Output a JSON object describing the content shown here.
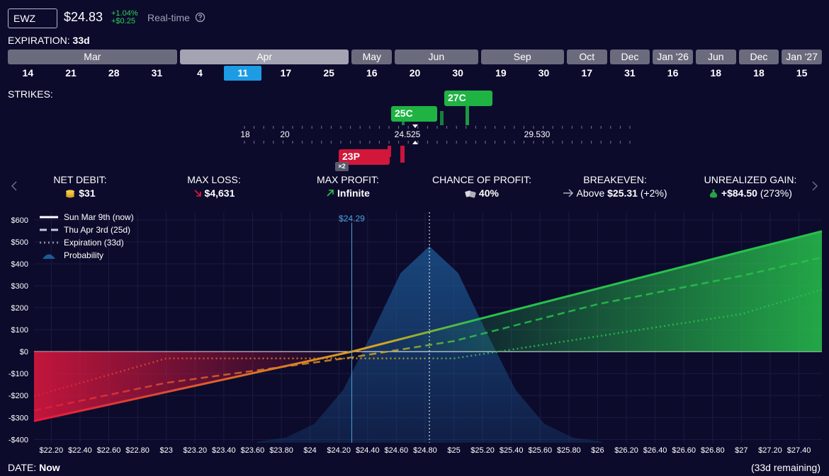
{
  "header": {
    "ticker": "EWZ",
    "price": "$24.83",
    "change_pct": "+1.04%",
    "change_abs": "+$0.25",
    "realtime": "Real-time"
  },
  "expiration": {
    "label": "EXPIRATION:",
    "value": "33d"
  },
  "months": [
    {
      "label": "Mar",
      "dates": [
        "14",
        "21",
        "28",
        "31"
      ]
    },
    {
      "label": "Apr",
      "dates": [
        "4",
        "11",
        "17",
        "25"
      ]
    },
    {
      "label": "May",
      "dates": [
        "16"
      ]
    },
    {
      "label": "Jun",
      "dates": [
        "20",
        "30"
      ]
    },
    {
      "label": "Sep",
      "dates": [
        "19",
        "30"
      ]
    },
    {
      "label": "Oct",
      "dates": [
        "17"
      ]
    },
    {
      "label": "Dec",
      "dates": [
        "31"
      ]
    },
    {
      "label": "Jan '26",
      "dates": [
        "16"
      ]
    },
    {
      "label": "Jun",
      "dates": [
        "18"
      ]
    },
    {
      "label": "Dec",
      "dates": [
        "18"
      ]
    },
    {
      "label": "Jan '27",
      "dates": [
        "15"
      ]
    }
  ],
  "selected": {
    "month": 1,
    "date": 1
  },
  "strikes": {
    "label": "STRIKES:",
    "ticks": [
      "18",
      "20",
      "24.525",
      "29.530"
    ],
    "legs": [
      {
        "label": "25C",
        "side": "call"
      },
      {
        "label": "27C",
        "side": "call"
      },
      {
        "label": "23P",
        "side": "put",
        "qty": "×2"
      }
    ]
  },
  "stats": [
    {
      "label": "NET DEBIT:",
      "value": "$31"
    },
    {
      "label": "MAX LOSS:",
      "value": "$4,631"
    },
    {
      "label": "MAX PROFIT:",
      "value": "Infinite"
    },
    {
      "label": "CHANCE OF PROFIT:",
      "value": "40%"
    },
    {
      "label": "BREAKEVEN:",
      "prefix": "Above",
      "value": "$25.31",
      "suffix": "(+2%)"
    },
    {
      "label": "UNREALIZED GAIN:",
      "value": "+$84.50",
      "suffix": "(273%)"
    }
  ],
  "chart_data": {
    "type": "line",
    "xlim": [
      22.08,
      27.56
    ],
    "ylim": [
      -415,
      635
    ],
    "xticks": [
      {
        "value": 22.2,
        "label": "$22.20"
      },
      {
        "value": 22.4,
        "label": "$22.40"
      },
      {
        "value": 22.6,
        "label": "$22.60"
      },
      {
        "value": 22.8,
        "label": "$22.80"
      },
      {
        "value": 23,
        "label": "$23"
      },
      {
        "value": 23.2,
        "label": "$23.20"
      },
      {
        "value": 23.4,
        "label": "$23.40"
      },
      {
        "value": 23.6,
        "label": "$23.60"
      },
      {
        "value": 23.8,
        "label": "$23.80"
      },
      {
        "value": 24,
        "label": "$24"
      },
      {
        "value": 24.2,
        "label": "$24.20"
      },
      {
        "value": 24.4,
        "label": "$24.40"
      },
      {
        "value": 24.6,
        "label": "$24.60"
      },
      {
        "value": 24.8,
        "label": "$24.80"
      },
      {
        "value": 25,
        "label": "$25"
      },
      {
        "value": 25.2,
        "label": "$25.20"
      },
      {
        "value": 25.4,
        "label": "$25.40"
      },
      {
        "value": 25.6,
        "label": "$25.60"
      },
      {
        "value": 25.8,
        "label": "$25.80"
      },
      {
        "value": 26,
        "label": "$26"
      },
      {
        "value": 26.2,
        "label": "$26.20"
      },
      {
        "value": 26.4,
        "label": "$26.40"
      },
      {
        "value": 26.6,
        "label": "$26.60"
      },
      {
        "value": 26.8,
        "label": "$26.80"
      },
      {
        "value": 27,
        "label": "$27"
      },
      {
        "value": 27.2,
        "label": "$27.20"
      },
      {
        "value": 27.4,
        "label": "$27.40"
      }
    ],
    "yticks": [
      {
        "value": 600,
        "label": "$600"
      },
      {
        "value": 500,
        "label": "$500"
      },
      {
        "value": 400,
        "label": "$400"
      },
      {
        "value": 300,
        "label": "$300"
      },
      {
        "value": 200,
        "label": "$200"
      },
      {
        "value": 100,
        "label": "$100"
      },
      {
        "value": 0,
        "label": "$0"
      },
      {
        "value": -100,
        "label": "-$100"
      },
      {
        "value": -200,
        "label": "-$200"
      },
      {
        "value": -300,
        "label": "-$300"
      },
      {
        "value": -400,
        "label": "-$400"
      }
    ],
    "grid": true,
    "gradient": [
      "#e3173e",
      "#d9a51c",
      "#27c24c"
    ],
    "series": [
      {
        "name": "Sun Mar 9th (now)",
        "style": "solid",
        "color": "#ffffff",
        "x": [
          22.08,
          23,
          24.29,
          25,
          26,
          27,
          27.56
        ],
        "values": [
          -316,
          -184,
          0,
          119,
          287,
          455,
          548
        ]
      },
      {
        "name": "Thu Apr 3rd (25d)",
        "style": "dashed",
        "color": "#c9c9d6",
        "x": [
          22.08,
          23,
          24.29,
          25,
          26,
          27,
          27.56
        ],
        "values": [
          -268,
          -142,
          -26,
          48,
          216,
          345,
          429
        ]
      },
      {
        "name": "Expiration (33d)",
        "style": "dotted",
        "color": "#8a8a9a",
        "x": [
          22.08,
          23,
          25,
          25.31,
          27,
          27.56
        ],
        "values": [
          -203,
          -31,
          -31,
          0,
          171,
          283
        ]
      },
      {
        "name": "Probability",
        "style": "area",
        "color": "#1d5a96",
        "x": [
          23.63,
          23.83,
          24.03,
          24.23,
          24.43,
          24.63,
          24.83,
          25.03,
          25.23,
          25.43,
          25.63,
          25.83,
          26.03
        ],
        "values": [
          -410,
          -392,
          -329,
          -175,
          84,
          358,
          480,
          358,
          84,
          -175,
          -329,
          -392,
          -410
        ]
      }
    ],
    "marker": {
      "x": 24.29,
      "label": "$24.29",
      "color": "#4aa3df"
    },
    "price_line": 24.83
  },
  "footer": {
    "label": "DATE:",
    "value": "Now",
    "remaining": "(33d remaining)"
  }
}
